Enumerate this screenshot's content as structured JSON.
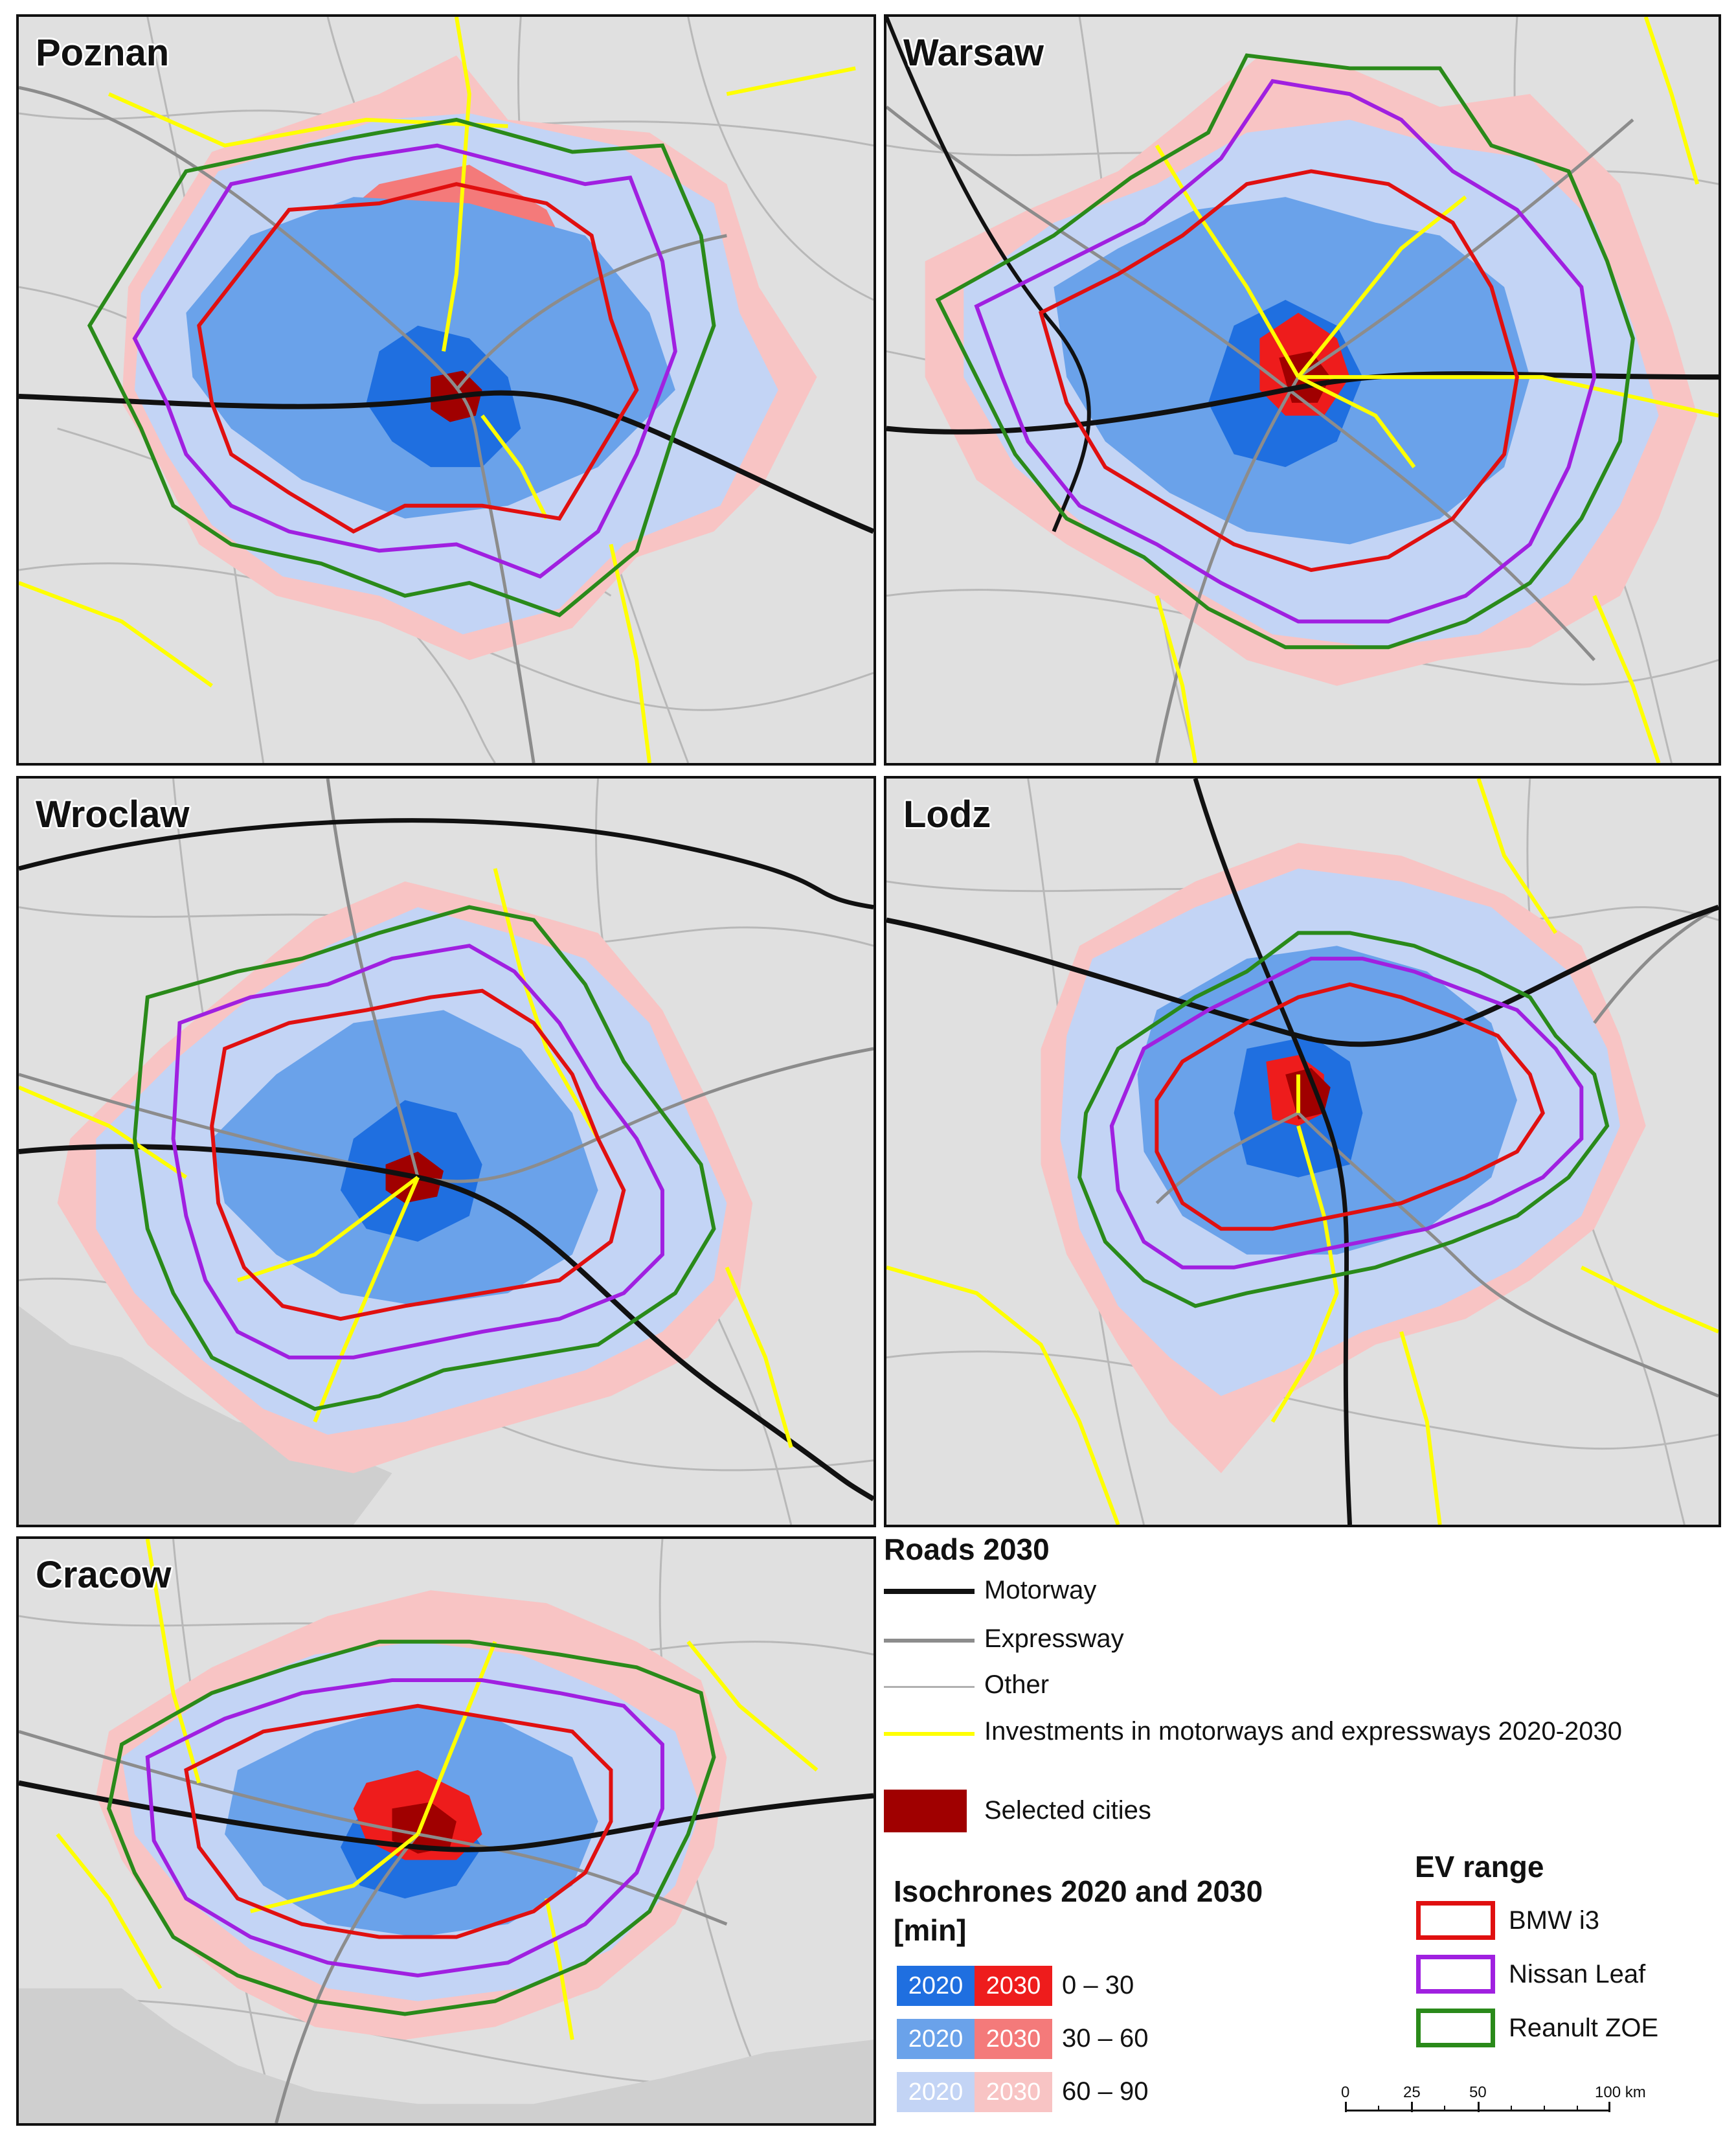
{
  "panels": [
    {
      "id": "poznan",
      "title": "Poznan"
    },
    {
      "id": "warsaw",
      "title": "Warsaw"
    },
    {
      "id": "wroclaw",
      "title": "Wroclaw"
    },
    {
      "id": "lodz",
      "title": "Lodz"
    },
    {
      "id": "cracow",
      "title": "Cracow"
    }
  ],
  "legend": {
    "roads_title": "Roads 2030",
    "roads": [
      {
        "label": "Motorway",
        "color": "#111111"
      },
      {
        "label": "Expressway",
        "color": "#8c8c8c"
      },
      {
        "label": "Other",
        "color": "#b0b0b0"
      },
      {
        "label": "Investments in motorways and expressways 2020-2030",
        "color": "#ffff00"
      }
    ],
    "selected_cities": {
      "label": "Selected cities",
      "color": "#a00000"
    },
    "isochrones_title_line1": "Isochrones 2020 and 2030",
    "isochrones_title_line2": "[min]",
    "isochrones": [
      {
        "y2020": "2020",
        "y2030": "2030",
        "range": "0 – 30",
        "c2020": "#1f6fe0",
        "c2030": "#ee1c1c"
      },
      {
        "y2020": "2020",
        "y2030": "2030",
        "range": "30 – 60",
        "c2020": "#6aa2ea",
        "c2030": "#f47a7a"
      },
      {
        "y2020": "2020",
        "y2030": "2030",
        "range": "60 – 90",
        "c2020": "#c3d4f5",
        "c2030": "#f8c4c4"
      }
    ],
    "ev_title": "EV range",
    "ev": [
      {
        "label": "BMW i3",
        "color": "#e01010"
      },
      {
        "label": "Nissan Leaf",
        "color": "#a020e0"
      },
      {
        "label": "Reanult ZOE",
        "color": "#2a8a1a"
      }
    ],
    "scale": {
      "ticks": [
        "0",
        "25",
        "50",
        "100 km"
      ]
    }
  },
  "colors": {
    "background": "#e0e0e0",
    "iso2030_far": "#f8c4c4",
    "iso2020_far": "#c3d4f5",
    "iso2020_mid": "#6aa2ea",
    "iso2020_near": "#1f6fe0",
    "iso2030_near": "#ee1c1c",
    "city": "#a00000"
  }
}
